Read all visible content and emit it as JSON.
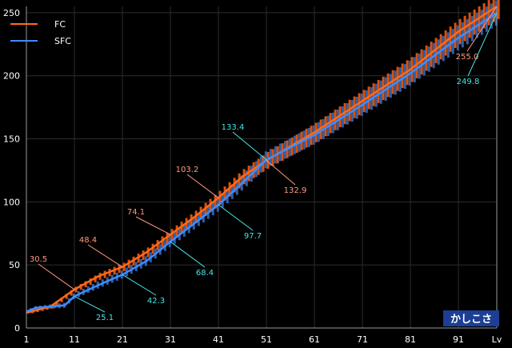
{
  "chart_data": {
    "type": "line",
    "x_label": "Lv",
    "badge": "かしこさ",
    "x_ticks": [
      "1",
      "11",
      "21",
      "31",
      "41",
      "51",
      "61",
      "71",
      "81",
      "91"
    ],
    "y_ticks": [
      "0",
      "50",
      "100",
      "150",
      "200",
      "250"
    ],
    "xlim": [
      1,
      99
    ],
    "ylim": [
      0,
      255
    ],
    "grid": true,
    "legend_position": "top-left",
    "colors": {
      "FC": "#ff6a1a",
      "SFC": "#3f8cff",
      "FC_bar": "#d9520f",
      "SFC_bar": "#2f5fa8",
      "label_FC": "#ff9a80",
      "label_SFC": "#46e6e6",
      "grid": "#2c2c2c",
      "axis": "#9a9a9a",
      "badge_bg": "#1c3f93"
    },
    "series": [
      {
        "name": "FC",
        "points": [
          [
            1,
            12
          ],
          [
            3,
            14
          ],
          [
            6,
            17
          ],
          [
            11,
            30.5
          ],
          [
            16,
            41
          ],
          [
            21,
            48.4
          ],
          [
            26,
            60
          ],
          [
            31,
            74.1
          ],
          [
            36,
            88
          ],
          [
            41,
            103.2
          ],
          [
            46,
            120
          ],
          [
            51,
            132.9
          ],
          [
            61,
            155
          ],
          [
            71,
            180
          ],
          [
            81,
            205
          ],
          [
            91,
            235
          ],
          [
            99,
            255
          ]
        ]
      },
      {
        "name": "SFC",
        "points": [
          [
            1,
            13
          ],
          [
            3,
            16
          ],
          [
            6,
            17
          ],
          [
            9,
            18
          ],
          [
            11,
            25.1
          ],
          [
            16,
            34
          ],
          [
            21,
            42.3
          ],
          [
            26,
            53
          ],
          [
            31,
            68.4
          ],
          [
            36,
            83
          ],
          [
            41,
            97.7
          ],
          [
            46,
            115
          ],
          [
            51,
            133.4
          ],
          [
            61,
            153
          ],
          [
            71,
            177
          ],
          [
            81,
            202
          ],
          [
            91,
            230
          ],
          [
            99,
            249.8
          ]
        ]
      }
    ],
    "annotations": [
      {
        "series": "FC",
        "level": 11,
        "value": 30.5,
        "text": "30.5"
      },
      {
        "series": "FC",
        "level": 21,
        "value": 48.4,
        "text": "48.4"
      },
      {
        "series": "FC",
        "level": 31,
        "value": 74.1,
        "text": "74.1"
      },
      {
        "series": "FC",
        "level": 41,
        "value": 103.2,
        "text": "103.2"
      },
      {
        "series": "FC",
        "level": 51,
        "value": 132.9,
        "text": "132.9"
      },
      {
        "series": "FC",
        "level": 99,
        "value": 255.0,
        "text": "255.0"
      },
      {
        "series": "SFC",
        "level": 11,
        "value": 25.1,
        "text": "25.1"
      },
      {
        "series": "SFC",
        "level": 21,
        "value": 42.3,
        "text": "42.3"
      },
      {
        "series": "SFC",
        "level": 31,
        "value": 68.4,
        "text": "68.4"
      },
      {
        "series": "SFC",
        "level": 41,
        "value": 97.7,
        "text": "97.7"
      },
      {
        "series": "SFC",
        "level": 51,
        "value": 133.4,
        "text": "133.4"
      },
      {
        "series": "SFC",
        "level": 99,
        "value": 249.8,
        "text": "249.8"
      }
    ]
  }
}
